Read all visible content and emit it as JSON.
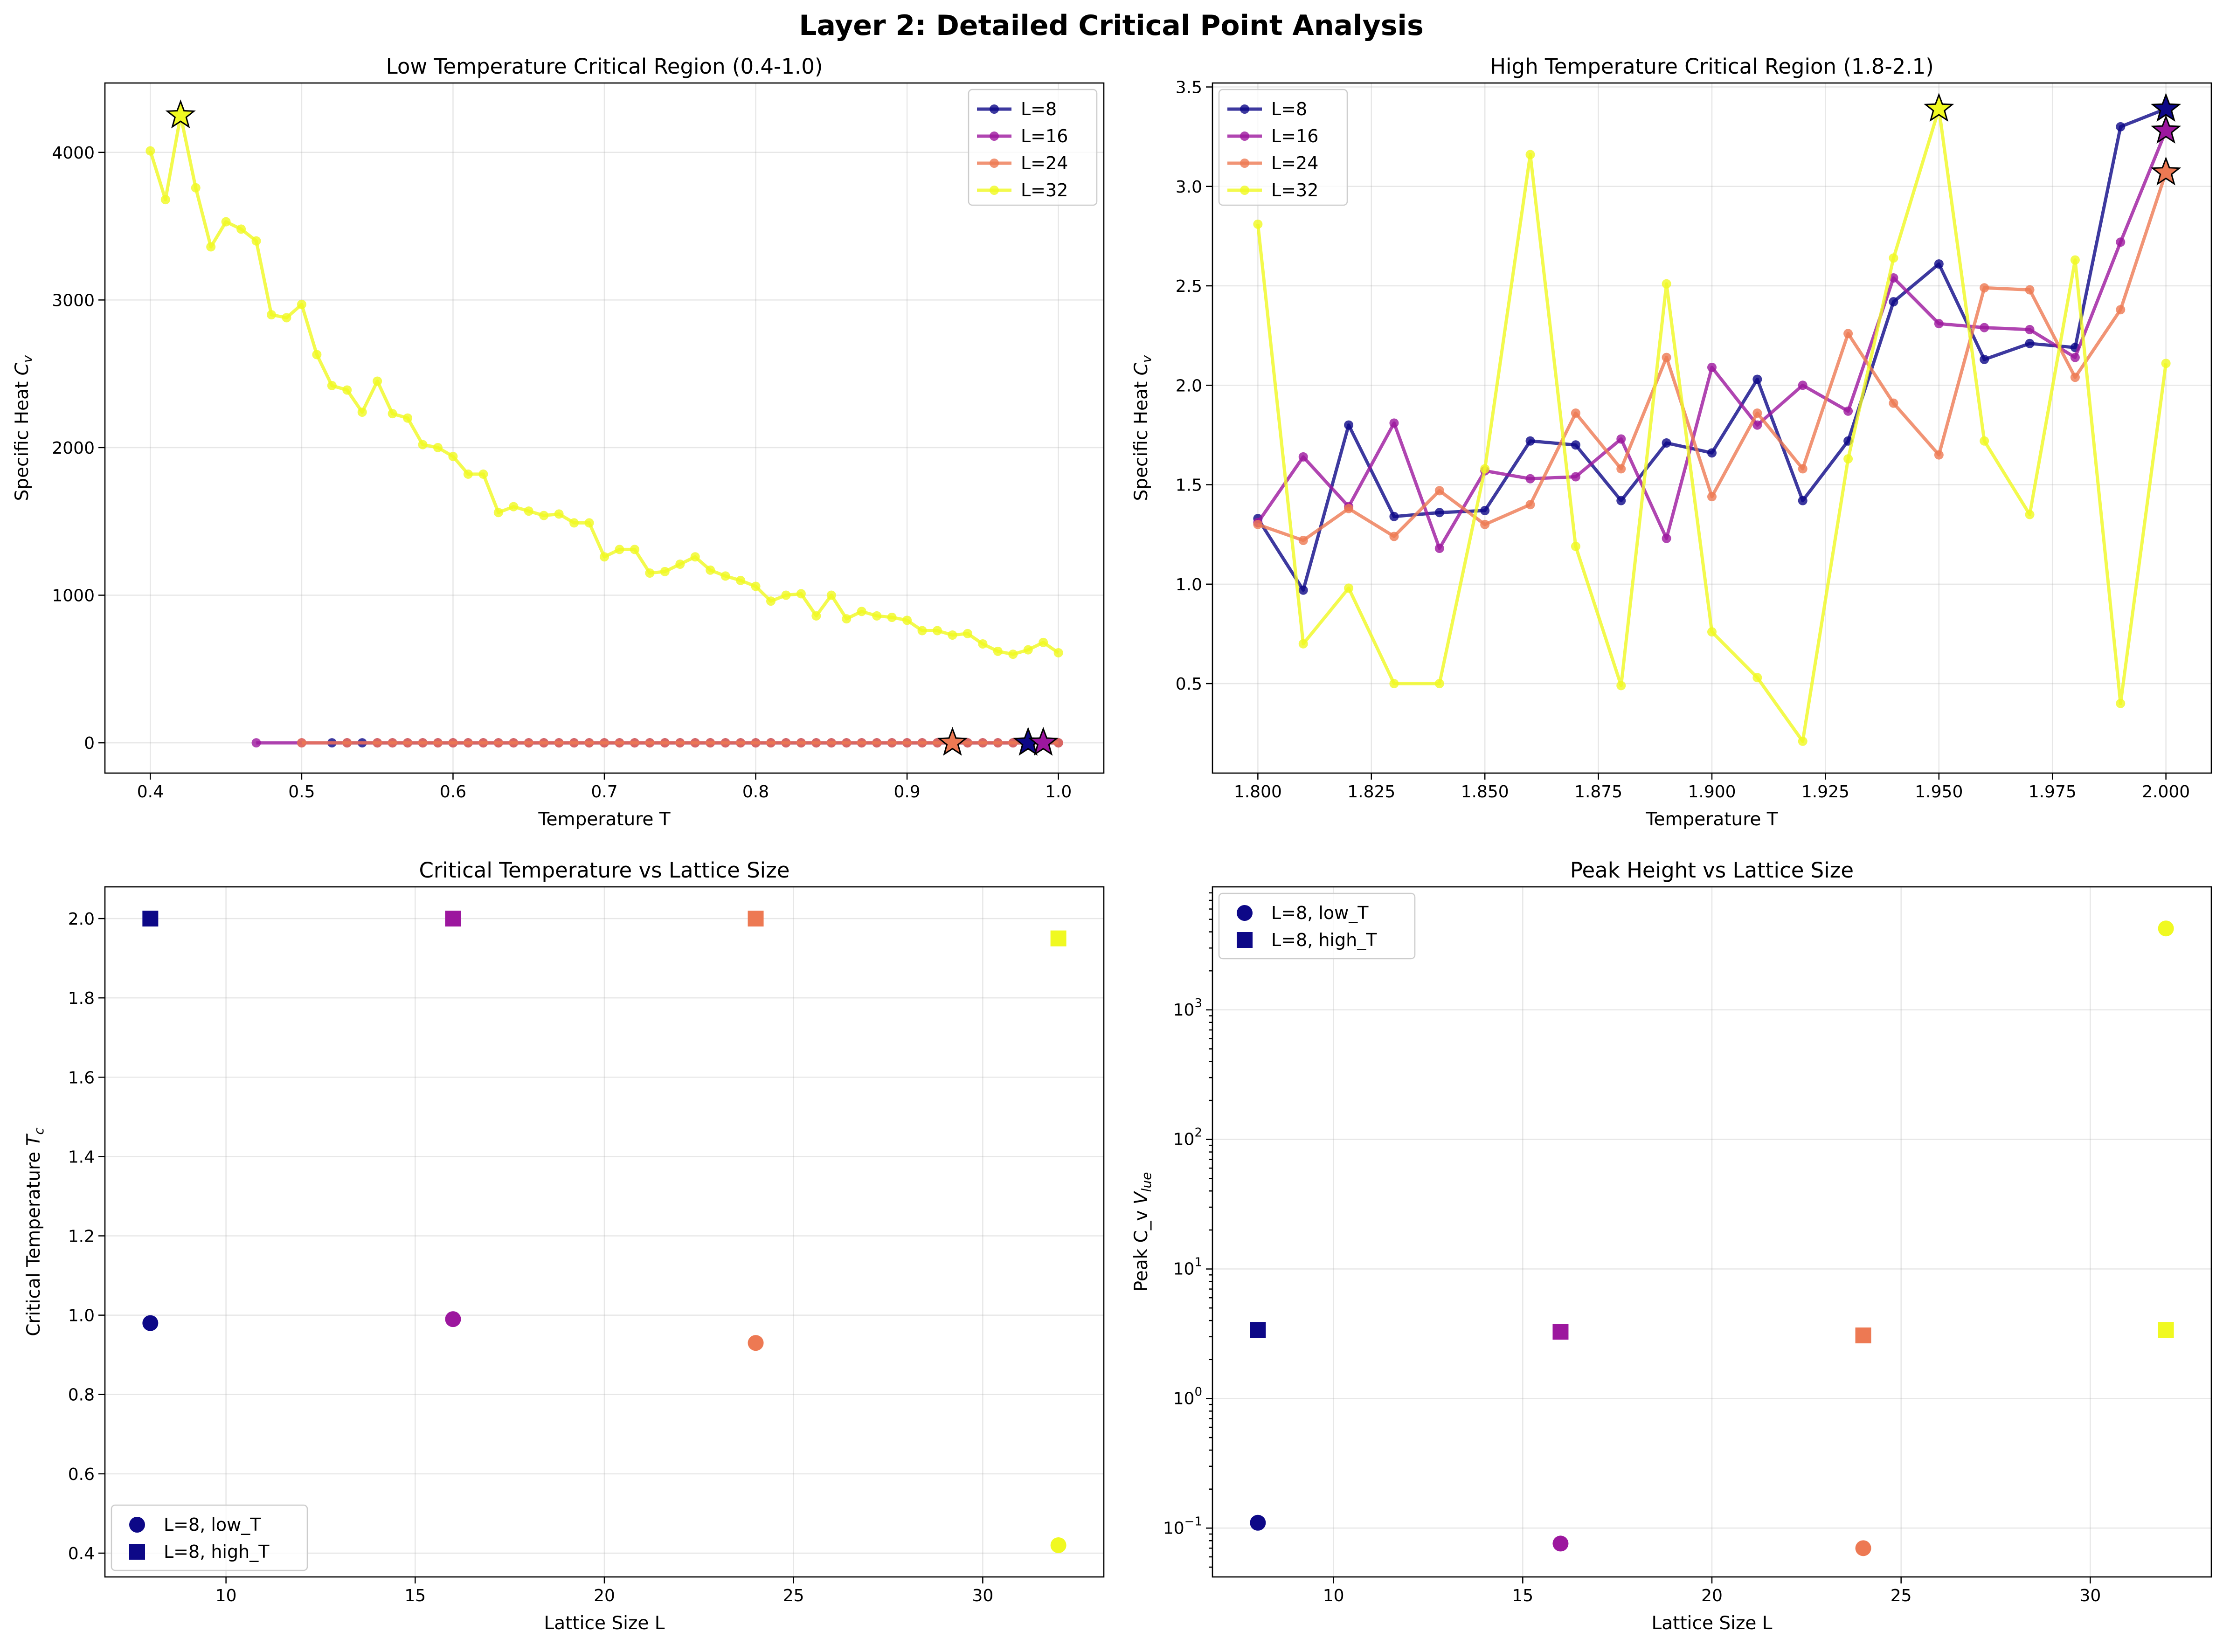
{
  "figure_title": "Layer 2: Detailed Critical Point Analysis",
  "colors": {
    "L8": "#0d0887",
    "L16": "#9c179e",
    "L24": "#ed7953",
    "L32": "#f0f921"
  },
  "chart_data": [
    {
      "id": "low",
      "type": "line",
      "title": "Low Temperature Critical Region (0.4-1.0)",
      "xlabel": "Temperature T",
      "ylabel": "Specific Heat C_v",
      "xlim": [
        0.37,
        1.03
      ],
      "ylim": [
        -205,
        4470
      ],
      "xticks": [
        0.4,
        0.5,
        0.6,
        0.7,
        0.8,
        0.9,
        1.0
      ],
      "xtick_labels": [
        "0.4",
        "0.5",
        "0.6",
        "0.7",
        "0.8",
        "0.9",
        "1.0"
      ],
      "yticks": [
        0,
        1000,
        2000,
        3000,
        4000
      ],
      "ytick_labels": [
        "0",
        "1000",
        "2000",
        "3000",
        "4000"
      ],
      "grid": true,
      "legend": {
        "position": "top-right",
        "entries": [
          "L=8",
          "L=16",
          "L=24",
          "L=32"
        ]
      },
      "series": [
        {
          "name": "L=8",
          "color": "#0d0887",
          "x": [
            0.52,
            0.53,
            0.54,
            0.55,
            0.56,
            0.57,
            0.58,
            0.59,
            0.6,
            0.61,
            0.62,
            0.63,
            0.64,
            0.65,
            0.66,
            0.67,
            0.68,
            0.69,
            0.7,
            0.71,
            0.72,
            0.73,
            0.74,
            0.75,
            0.76,
            0.77,
            0.78,
            0.79,
            0.8,
            0.81,
            0.82,
            0.83,
            0.84,
            0.85,
            0.86,
            0.87,
            0.88,
            0.89,
            0.9,
            0.91,
            0.92,
            0.93,
            0.94,
            0.95,
            0.96,
            0.97,
            0.98,
            0.99,
            1.0
          ],
          "y": [
            0.05,
            0.05,
            0.05,
            0.05,
            0.05,
            0.05,
            0.05,
            0.05,
            0.05,
            0.05,
            0.05,
            0.05,
            0.05,
            0.05,
            0.05,
            0.05,
            0.05,
            0.05,
            0.05,
            0.05,
            0.05,
            0.05,
            0.05,
            0.05,
            0.05,
            0.05,
            0.05,
            0.05,
            0.05,
            0.05,
            0.05,
            0.05,
            0.05,
            0.05,
            0.05,
            0.05,
            0.05,
            0.05,
            0.05,
            0.05,
            0.05,
            0.05,
            0.05,
            0.05,
            0.06,
            0.07,
            0.11,
            0.08,
            0.07
          ],
          "peak": [
            0.98,
            0.11
          ]
        },
        {
          "name": "L=16",
          "color": "#9c179e",
          "x": [
            0.47,
            0.5,
            0.53,
            0.55,
            0.56,
            0.57,
            0.58,
            0.59,
            0.6,
            0.61,
            0.62,
            0.63,
            0.64,
            0.65,
            0.66,
            0.67,
            0.68,
            0.69,
            0.7,
            0.71,
            0.72,
            0.73,
            0.74,
            0.75,
            0.76,
            0.77,
            0.78,
            0.79,
            0.8,
            0.81,
            0.82,
            0.83,
            0.84,
            0.85,
            0.86,
            0.87,
            0.88,
            0.89,
            0.9,
            0.91,
            0.92,
            0.93,
            0.94,
            0.95,
            0.96,
            0.97,
            0.98,
            0.99,
            1.0
          ],
          "y": [
            0.03,
            0.03,
            0.03,
            0.03,
            0.03,
            0.03,
            0.03,
            0.03,
            0.03,
            0.03,
            0.03,
            0.03,
            0.03,
            0.03,
            0.03,
            0.03,
            0.03,
            0.03,
            0.03,
            0.03,
            0.03,
            0.03,
            0.03,
            0.03,
            0.03,
            0.03,
            0.03,
            0.03,
            0.03,
            0.03,
            0.03,
            0.03,
            0.03,
            0.03,
            0.03,
            0.03,
            0.03,
            0.03,
            0.03,
            0.03,
            0.03,
            0.03,
            0.04,
            0.04,
            0.05,
            0.06,
            0.07,
            0.076,
            0.06
          ],
          "peak": [
            0.99,
            0.076
          ]
        },
        {
          "name": "L=24",
          "color": "#ed7953",
          "x": [
            0.5,
            0.53,
            0.55,
            0.56,
            0.57,
            0.58,
            0.59,
            0.6,
            0.61,
            0.62,
            0.63,
            0.64,
            0.65,
            0.66,
            0.67,
            0.68,
            0.69,
            0.7,
            0.71,
            0.72,
            0.73,
            0.74,
            0.75,
            0.76,
            0.77,
            0.78,
            0.79,
            0.8,
            0.81,
            0.82,
            0.83,
            0.84,
            0.85,
            0.86,
            0.87,
            0.88,
            0.89,
            0.9,
            0.91,
            0.92,
            0.93,
            0.94,
            0.95,
            0.96,
            0.97,
            0.98,
            0.99,
            1.0
          ],
          "y": [
            0.02,
            0.02,
            0.02,
            0.02,
            0.02,
            0.02,
            0.02,
            0.02,
            0.02,
            0.02,
            0.02,
            0.02,
            0.02,
            0.02,
            0.02,
            0.02,
            0.02,
            0.02,
            0.02,
            0.02,
            0.02,
            0.02,
            0.02,
            0.02,
            0.02,
            0.02,
            0.02,
            0.02,
            0.02,
            0.02,
            0.02,
            0.02,
            0.02,
            0.02,
            0.02,
            0.02,
            0.03,
            0.03,
            0.04,
            0.05,
            0.07,
            0.06,
            0.05,
            0.05,
            0.05,
            0.05,
            0.05,
            0.05
          ],
          "peak": [
            0.93,
            0.07
          ]
        },
        {
          "name": "L=32",
          "color": "#f0f921",
          "x": [
            0.4,
            0.41,
            0.42,
            0.43,
            0.44,
            0.45,
            0.46,
            0.47,
            0.48,
            0.49,
            0.5,
            0.51,
            0.52,
            0.53,
            0.54,
            0.55,
            0.56,
            0.57,
            0.58,
            0.59,
            0.6,
            0.61,
            0.62,
            0.63,
            0.64,
            0.65,
            0.66,
            0.67,
            0.68,
            0.69,
            0.7,
            0.71,
            0.72,
            0.73,
            0.74,
            0.75,
            0.76,
            0.77,
            0.78,
            0.79,
            0.8,
            0.81,
            0.82,
            0.83,
            0.84,
            0.85,
            0.86,
            0.87,
            0.88,
            0.89,
            0.9,
            0.91,
            0.92,
            0.93,
            0.94,
            0.95,
            0.96,
            0.97,
            0.98,
            0.99,
            1.0
          ],
          "y": [
            4010,
            3680,
            4250,
            3760,
            3360,
            3530,
            3480,
            3400,
            2900,
            2880,
            2970,
            2630,
            2420,
            2390,
            2240,
            2450,
            2230,
            2200,
            2020,
            2000,
            1940,
            1820,
            1820,
            1560,
            1600,
            1570,
            1540,
            1550,
            1490,
            1490,
            1260,
            1310,
            1310,
            1150,
            1160,
            1210,
            1260,
            1170,
            1130,
            1100,
            1060,
            960,
            1000,
            1010,
            860,
            1000,
            840,
            890,
            860,
            850,
            830,
            760,
            760,
            730,
            740,
            670,
            620,
            600,
            630,
            680,
            610
          ],
          "peak": [
            0.42,
            4250
          ]
        }
      ]
    },
    {
      "id": "high",
      "type": "line",
      "title": "High Temperature Critical Region (1.8-2.1)",
      "xlabel": "Temperature T",
      "ylabel": "Specific Heat C_v",
      "xlim": [
        1.79,
        2.01
      ],
      "ylim": [
        0.05,
        3.52
      ],
      "xticks": [
        1.8,
        1.825,
        1.85,
        1.875,
        1.9,
        1.925,
        1.95,
        1.975,
        2.0
      ],
      "xtick_labels": [
        "1.800",
        "1.825",
        "1.850",
        "1.875",
        "1.900",
        "1.925",
        "1.950",
        "1.975",
        "2.000"
      ],
      "yticks": [
        0.5,
        1.0,
        1.5,
        2.0,
        2.5,
        3.0,
        3.5
      ],
      "ytick_labels": [
        "0.5",
        "1.0",
        "1.5",
        "2.0",
        "2.5",
        "3.0",
        "3.5"
      ],
      "grid": true,
      "legend": {
        "position": "top-left",
        "entries": [
          "L=8",
          "L=16",
          "L=24",
          "L=32"
        ]
      },
      "series": [
        {
          "name": "L=8",
          "color": "#0d0887",
          "x": [
            1.8,
            1.81,
            1.82,
            1.83,
            1.84,
            1.85,
            1.86,
            1.87,
            1.88,
            1.89,
            1.9,
            1.91,
            1.92,
            1.93,
            1.94,
            1.95,
            1.96,
            1.97,
            1.98,
            1.99,
            2.0
          ],
          "y": [
            1.33,
            0.97,
            1.8,
            1.34,
            1.36,
            1.37,
            1.72,
            1.7,
            1.42,
            1.71,
            1.66,
            2.03,
            1.42,
            1.72,
            2.42,
            2.61,
            2.13,
            2.21,
            2.19,
            3.3,
            3.39
          ],
          "peak": [
            2.0,
            3.39
          ]
        },
        {
          "name": "L=16",
          "color": "#9c179e",
          "x": [
            1.8,
            1.81,
            1.82,
            1.83,
            1.84,
            1.85,
            1.86,
            1.87,
            1.88,
            1.89,
            1.9,
            1.91,
            1.92,
            1.93,
            1.94,
            1.95,
            1.96,
            1.97,
            1.98,
            1.99,
            2.0
          ],
          "y": [
            1.31,
            1.64,
            1.39,
            1.81,
            1.18,
            1.57,
            1.53,
            1.54,
            1.73,
            1.23,
            2.09,
            1.8,
            2.0,
            1.87,
            2.54,
            2.31,
            2.29,
            2.28,
            2.14,
            2.72,
            3.28
          ],
          "peak": [
            2.0,
            3.28
          ]
        },
        {
          "name": "L=24",
          "color": "#ed7953",
          "x": [
            1.8,
            1.81,
            1.82,
            1.83,
            1.84,
            1.85,
            1.86,
            1.87,
            1.88,
            1.89,
            1.9,
            1.91,
            1.92,
            1.93,
            1.94,
            1.95,
            1.96,
            1.97,
            1.98,
            1.99,
            2.0
          ],
          "y": [
            1.3,
            1.22,
            1.38,
            1.24,
            1.47,
            1.3,
            1.4,
            1.86,
            1.58,
            2.14,
            1.44,
            1.86,
            1.58,
            2.26,
            1.91,
            1.65,
            2.49,
            2.48,
            2.04,
            2.38,
            3.07
          ],
          "peak": [
            2.0,
            3.07
          ]
        },
        {
          "name": "L=32",
          "color": "#f0f921",
          "x": [
            1.8,
            1.81,
            1.82,
            1.83,
            1.84,
            1.85,
            1.86,
            1.87,
            1.88,
            1.89,
            1.9,
            1.91,
            1.92,
            1.93,
            1.94,
            1.95,
            1.96,
            1.97,
            1.98,
            1.99,
            2.0
          ],
          "y": [
            2.81,
            0.7,
            0.98,
            0.5,
            0.5,
            1.58,
            3.16,
            1.19,
            0.49,
            2.51,
            0.76,
            0.53,
            0.21,
            1.63,
            2.64,
            3.39,
            1.72,
            1.35,
            2.63,
            0.4,
            2.11
          ],
          "peak": [
            1.95,
            3.39
          ]
        }
      ]
    },
    {
      "id": "tc",
      "type": "scatter",
      "title": "Critical Temperature vs Lattice Size",
      "xlabel": "Lattice Size L",
      "ylabel": "Critical Temperature T_c",
      "xlim": [
        6.8,
        33.2
      ],
      "ylim": [
        0.34,
        2.08
      ],
      "xticks": [
        10,
        15,
        20,
        25,
        30
      ],
      "xtick_labels": [
        "10",
        "15",
        "20",
        "25",
        "30"
      ],
      "yticks": [
        0.4,
        0.6,
        0.8,
        1.0,
        1.2,
        1.4,
        1.6,
        1.8,
        2.0
      ],
      "ytick_labels": [
        "0.4",
        "0.6",
        "0.8",
        "1.0",
        "1.2",
        "1.4",
        "1.6",
        "1.8",
        "2.0"
      ],
      "grid": true,
      "legend": {
        "position": "bottom-left",
        "entries": [
          "L=8, low_T",
          "L=8, high_T"
        ]
      },
      "low_T": {
        "x": [
          8,
          16,
          24,
          32
        ],
        "y": [
          0.98,
          0.99,
          0.93,
          0.42
        ]
      },
      "high_T": {
        "x": [
          8,
          16,
          24,
          32
        ],
        "y": [
          2.0,
          2.0,
          2.0,
          1.95
        ]
      }
    },
    {
      "id": "peak",
      "type": "scatter",
      "title": "Peak Height vs Lattice Size",
      "xlabel": "Lattice Size L",
      "ylabel": "Peak C_v Value",
      "xlim": [
        6.8,
        33.2
      ],
      "ylim": [
        0.042,
        8900
      ],
      "yscale": "log",
      "xticks": [
        10,
        15,
        20,
        25,
        30
      ],
      "xtick_labels": [
        "10",
        "15",
        "20",
        "25",
        "30"
      ],
      "yticks": [
        0.1,
        1,
        10,
        100,
        1000
      ],
      "ytick_base": "10",
      "ytick_exponents": [
        "−1",
        "0",
        "1",
        "2",
        "3"
      ],
      "grid": true,
      "legend": {
        "position": "top-left",
        "entries": [
          "L=8, low_T",
          "L=8, high_T"
        ]
      },
      "low_T": {
        "x": [
          8,
          16,
          24,
          32
        ],
        "y": [
          0.11,
          0.076,
          0.07,
          4250
        ]
      },
      "high_T": {
        "x": [
          8,
          16,
          24,
          32
        ],
        "y": [
          3.39,
          3.28,
          3.07,
          3.39
        ]
      }
    }
  ]
}
